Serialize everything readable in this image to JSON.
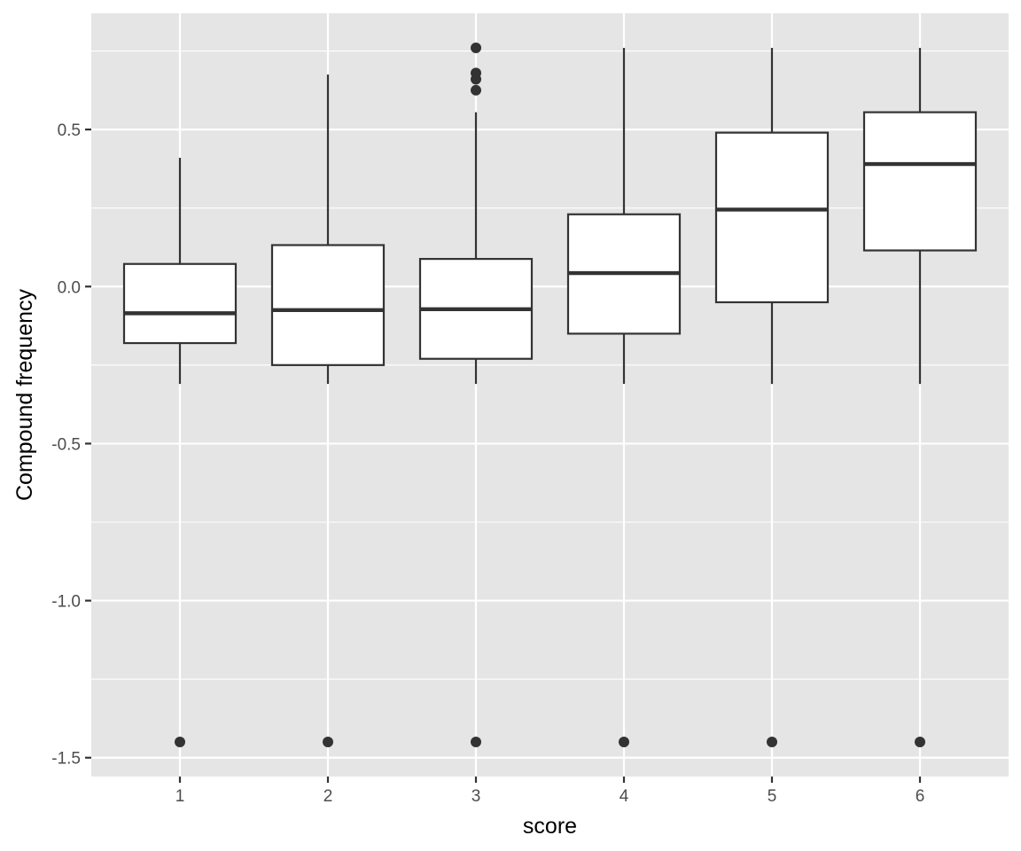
{
  "chart_data": {
    "type": "boxplot",
    "title": "",
    "xlabel": "score",
    "ylabel": "Compound frequency",
    "categories": [
      "1",
      "2",
      "3",
      "4",
      "5",
      "6"
    ],
    "ylim": [
      -1.56,
      0.87
    ],
    "y_ticks": [
      {
        "value": 0.5,
        "label": "0.5"
      },
      {
        "value": 0.0,
        "label": "0.0"
      },
      {
        "value": -0.5,
        "label": "-0.5"
      },
      {
        "value": -1.0,
        "label": "-1.0"
      },
      {
        "value": -1.5,
        "label": "-1.5"
      }
    ],
    "y_minor_ticks": [
      0.75,
      0.25,
      -0.25,
      -0.75,
      -1.25
    ],
    "grid": true,
    "legend": "none",
    "boxes": [
      {
        "category": "1",
        "whisker_low": -0.31,
        "q1": -0.18,
        "median": -0.085,
        "q3": 0.072,
        "whisker_high": 0.41,
        "outliers": [
          -1.45
        ]
      },
      {
        "category": "2",
        "whisker_low": -0.31,
        "q1": -0.25,
        "median": -0.075,
        "q3": 0.132,
        "whisker_high": 0.675,
        "outliers": [
          -1.45
        ]
      },
      {
        "category": "3",
        "whisker_low": -0.31,
        "q1": -0.23,
        "median": -0.072,
        "q3": 0.088,
        "whisker_high": 0.555,
        "outliers": [
          0.76,
          0.68,
          0.66,
          0.625,
          -1.45
        ]
      },
      {
        "category": "4",
        "whisker_low": -0.31,
        "q1": -0.15,
        "median": 0.043,
        "q3": 0.23,
        "whisker_high": 0.76,
        "outliers": [
          -1.45
        ]
      },
      {
        "category": "5",
        "whisker_low": -0.31,
        "q1": -0.05,
        "median": 0.245,
        "q3": 0.49,
        "whisker_high": 0.76,
        "outliers": [
          -1.45
        ]
      },
      {
        "category": "6",
        "whisker_low": -0.31,
        "q1": 0.115,
        "median": 0.39,
        "q3": 0.555,
        "whisker_high": 0.76,
        "outliers": [
          -1.45
        ]
      }
    ],
    "colors": {
      "panel_background": "#e5e5e5",
      "grid_line": "#ffffff",
      "box_fill": "#ffffff",
      "box_stroke": "#333333",
      "outlier": "#333333",
      "tick_text": "#4d4d4d"
    }
  }
}
